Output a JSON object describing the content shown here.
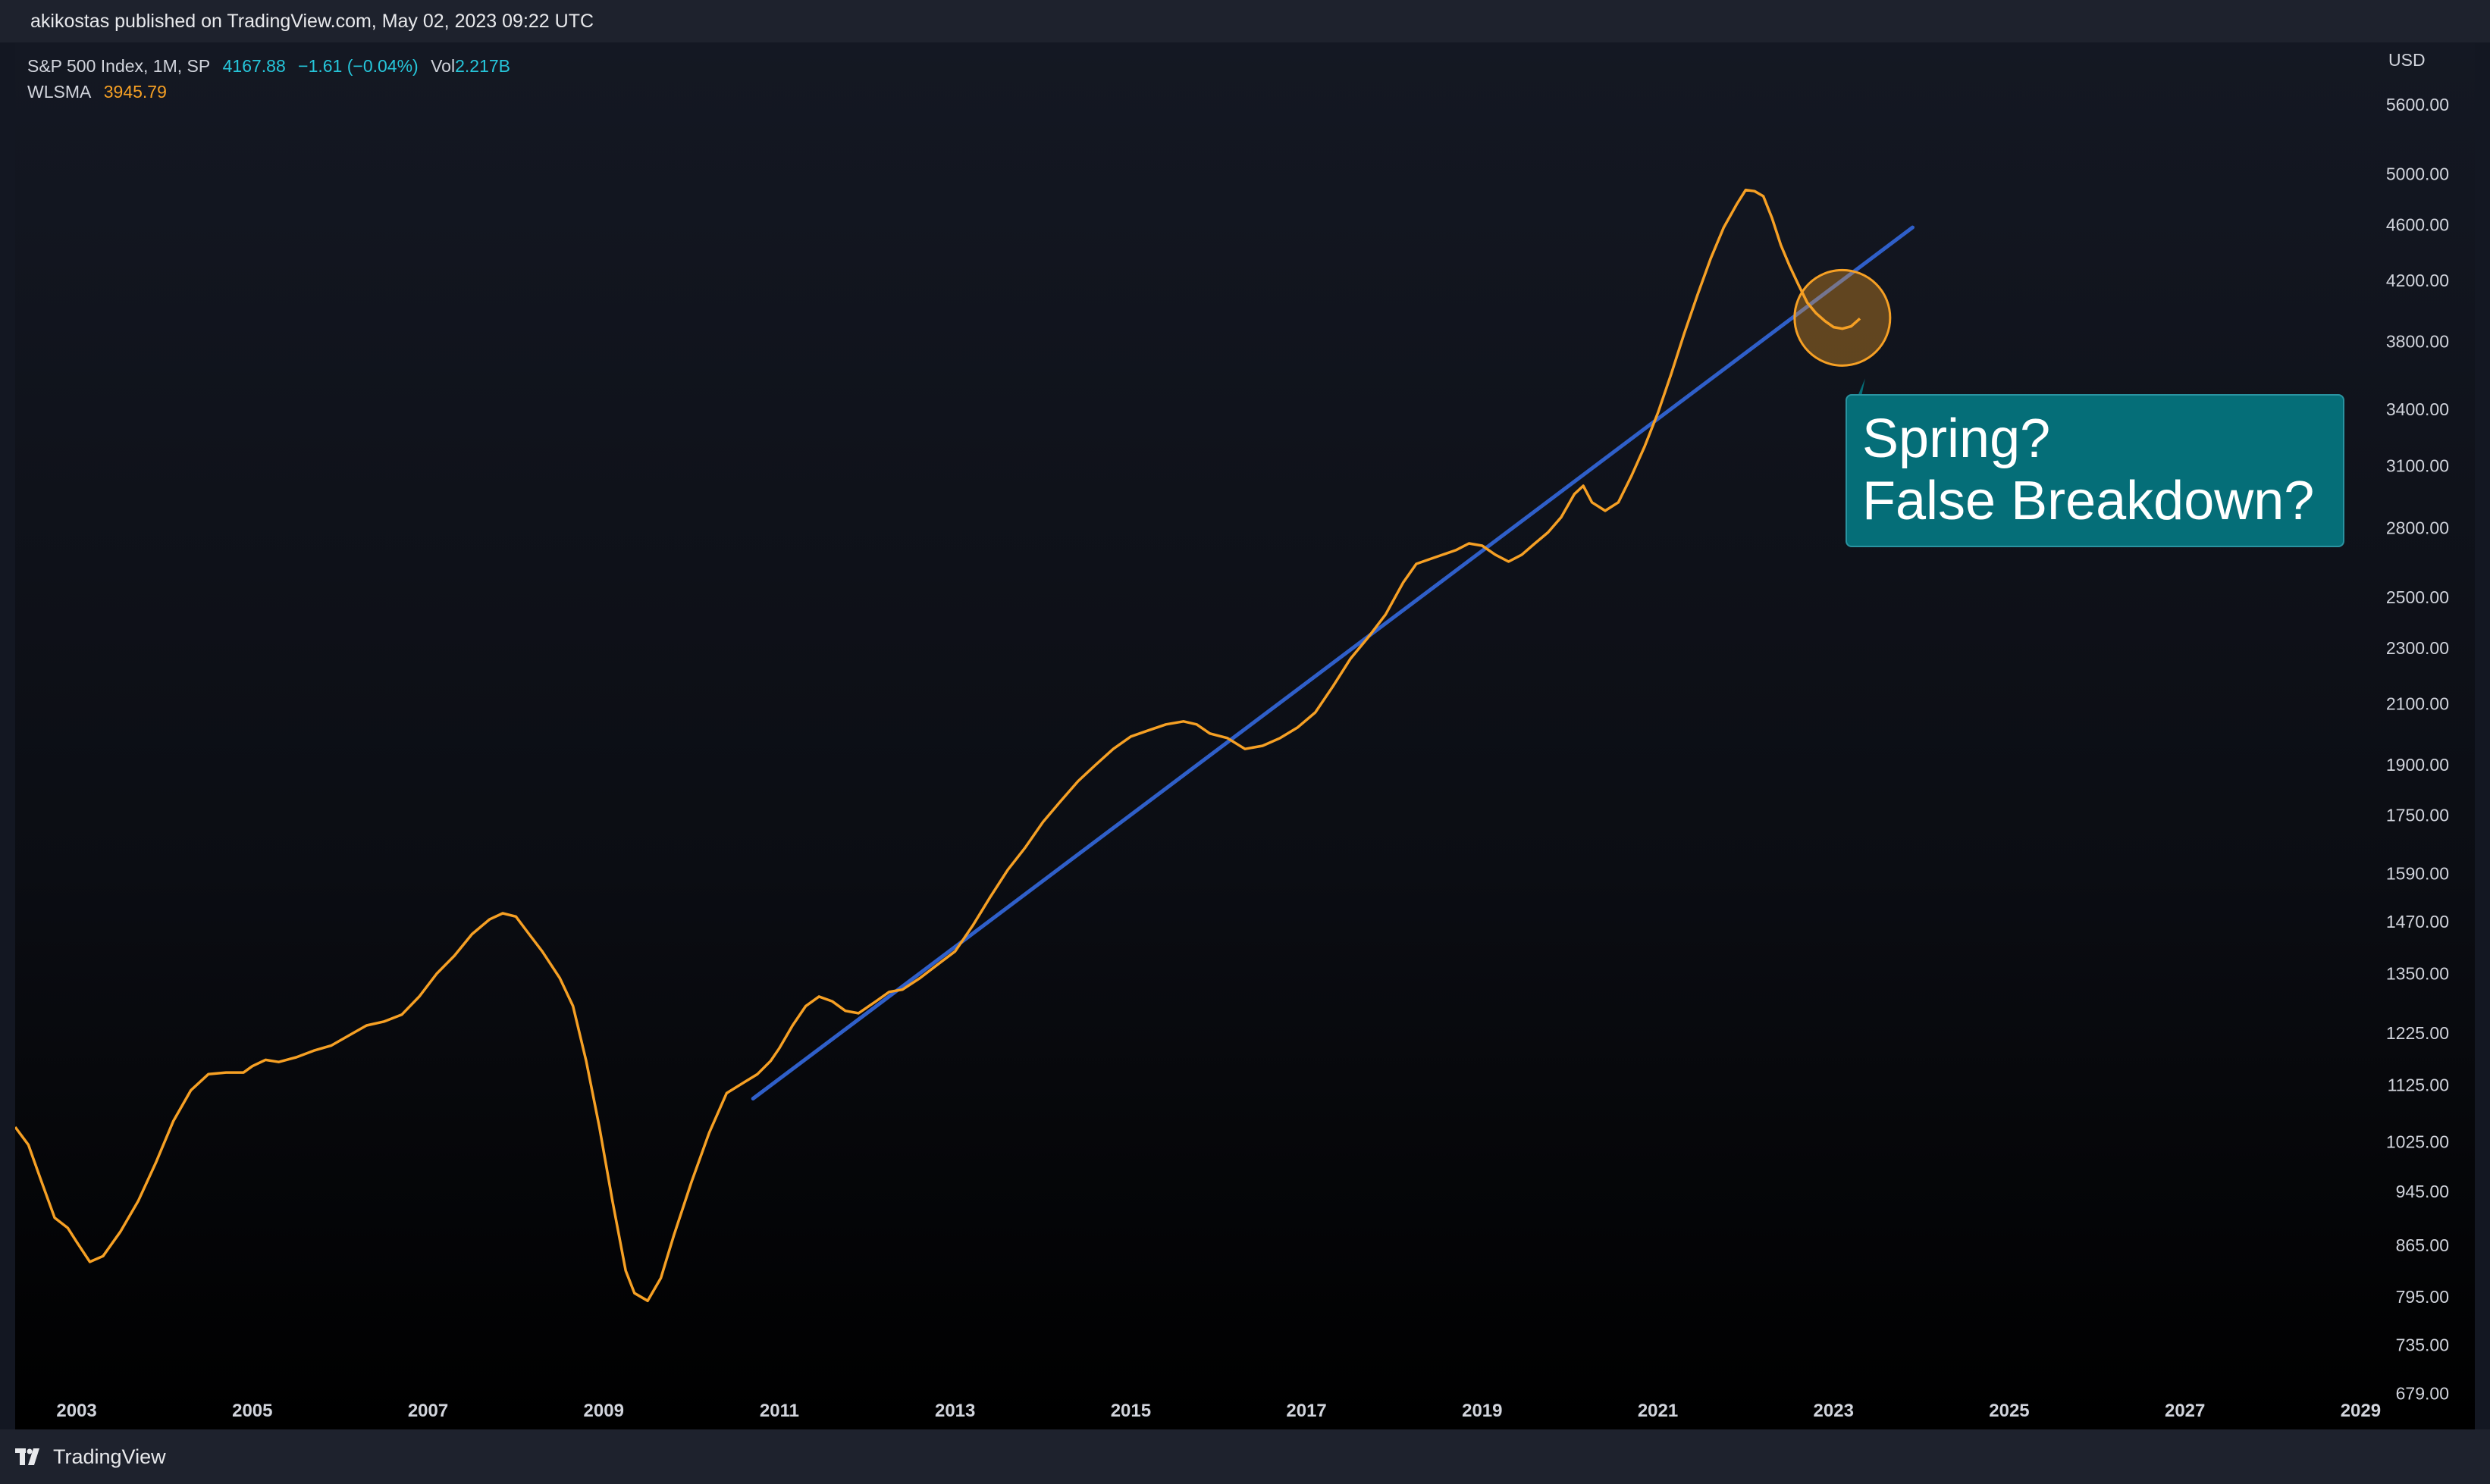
{
  "header": {
    "published_text": "akikostas published on TradingView.com, May 02, 2023 09:22 UTC"
  },
  "legend": {
    "symbol": "S&P 500 Index, 1M, SP",
    "price": "4167.88",
    "change": "−1.61 (−0.04%)",
    "vol_label": "Vol",
    "vol_value": "2.217B",
    "indicator_name": "WLSMA",
    "indicator_value": "3945.79"
  },
  "currency": "USD",
  "annotation": {
    "line1": "Spring?",
    "line2": "False Breakdown?"
  },
  "footer": {
    "brand": "TradingView"
  },
  "colors": {
    "wlsma_line": "#f6a024",
    "trendline": "#2f5fc9",
    "callout_bg": "#056e78",
    "highlight_circle": "#f6a024"
  },
  "chart_data": {
    "type": "line",
    "scale": "log",
    "y_ticks": [
      5600,
      5000,
      4600,
      4200,
      3800,
      3400,
      3100,
      2800,
      2500,
      2300,
      2100,
      1900,
      1750,
      1590,
      1470,
      1350,
      1225,
      1125,
      1025,
      945,
      865,
      795,
      735,
      679
    ],
    "y_tick_labels": [
      "5600.00",
      "5000.00",
      "4600.00",
      "4200.00",
      "3800.00",
      "3400.00",
      "3100.00",
      "2800.00",
      "2500.00",
      "2300.00",
      "2100.00",
      "1900.00",
      "1750.00",
      "1590.00",
      "1470.00",
      "1350.00",
      "1225.00",
      "1125.00",
      "1025.00",
      "945.00",
      "865.00",
      "795.00",
      "735.00",
      "679.00"
    ],
    "x_ticks": [
      2003,
      2005,
      2007,
      2009,
      2011,
      2013,
      2015,
      2017,
      2019,
      2021,
      2023,
      2025,
      2027,
      2029
    ],
    "x_tick_labels": [
      "2003",
      "2005",
      "2007",
      "2009",
      "2011",
      "2013",
      "2015",
      "2017",
      "2019",
      "2021",
      "2023",
      "2025",
      "2027",
      "2029"
    ],
    "xlim": [
      2002.3,
      2030.3
    ],
    "ylim": [
      640,
      6200
    ],
    "series": [
      {
        "name": "WLSMA",
        "points": [
          [
            2002.3,
            1050
          ],
          [
            2002.45,
            1020
          ],
          [
            2002.6,
            960
          ],
          [
            2002.75,
            905
          ],
          [
            2002.9,
            890
          ],
          [
            2003.0,
            870
          ],
          [
            2003.15,
            842
          ],
          [
            2003.3,
            850
          ],
          [
            2003.5,
            885
          ],
          [
            2003.7,
            930
          ],
          [
            2003.9,
            990
          ],
          [
            2004.1,
            1060
          ],
          [
            2004.3,
            1115
          ],
          [
            2004.5,
            1145
          ],
          [
            2004.7,
            1148
          ],
          [
            2004.9,
            1148
          ],
          [
            2005.0,
            1160
          ],
          [
            2005.15,
            1172
          ],
          [
            2005.3,
            1168
          ],
          [
            2005.5,
            1177
          ],
          [
            2005.7,
            1190
          ],
          [
            2005.9,
            1200
          ],
          [
            2006.1,
            1220
          ],
          [
            2006.3,
            1240
          ],
          [
            2006.5,
            1248
          ],
          [
            2006.7,
            1262
          ],
          [
            2006.9,
            1300
          ],
          [
            2007.1,
            1350
          ],
          [
            2007.3,
            1390
          ],
          [
            2007.5,
            1440
          ],
          [
            2007.7,
            1475
          ],
          [
            2007.85,
            1490
          ],
          [
            2008.0,
            1482
          ],
          [
            2008.15,
            1440
          ],
          [
            2008.3,
            1400
          ],
          [
            2008.5,
            1340
          ],
          [
            2008.65,
            1280
          ],
          [
            2008.8,
            1170
          ],
          [
            2008.95,
            1050
          ],
          [
            2009.1,
            930
          ],
          [
            2009.25,
            830
          ],
          [
            2009.35,
            800
          ],
          [
            2009.5,
            790
          ],
          [
            2009.65,
            820
          ],
          [
            2009.8,
            880
          ],
          [
            2010.0,
            960
          ],
          [
            2010.2,
            1040
          ],
          [
            2010.4,
            1110
          ],
          [
            2010.6,
            1130
          ],
          [
            2010.75,
            1145
          ],
          [
            2010.9,
            1170
          ],
          [
            2011.0,
            1195
          ],
          [
            2011.15,
            1240
          ],
          [
            2011.3,
            1280
          ],
          [
            2011.45,
            1300
          ],
          [
            2011.6,
            1290
          ],
          [
            2011.75,
            1270
          ],
          [
            2011.9,
            1265
          ],
          [
            2012.1,
            1290
          ],
          [
            2012.25,
            1310
          ],
          [
            2012.4,
            1315
          ],
          [
            2012.6,
            1340
          ],
          [
            2012.8,
            1370
          ],
          [
            2013.0,
            1400
          ],
          [
            2013.2,
            1460
          ],
          [
            2013.4,
            1530
          ],
          [
            2013.6,
            1600
          ],
          [
            2013.8,
            1660
          ],
          [
            2014.0,
            1730
          ],
          [
            2014.2,
            1790
          ],
          [
            2014.4,
            1850
          ],
          [
            2014.6,
            1900
          ],
          [
            2014.8,
            1950
          ],
          [
            2015.0,
            1990
          ],
          [
            2015.2,
            2010
          ],
          [
            2015.4,
            2030
          ],
          [
            2015.6,
            2040
          ],
          [
            2015.75,
            2030
          ],
          [
            2015.9,
            2000
          ],
          [
            2016.1,
            1985
          ],
          [
            2016.3,
            1950
          ],
          [
            2016.5,
            1960
          ],
          [
            2016.7,
            1985
          ],
          [
            2016.9,
            2020
          ],
          [
            2017.1,
            2070
          ],
          [
            2017.3,
            2160
          ],
          [
            2017.5,
            2260
          ],
          [
            2017.7,
            2340
          ],
          [
            2017.9,
            2430
          ],
          [
            2018.1,
            2560
          ],
          [
            2018.25,
            2640
          ],
          [
            2018.4,
            2660
          ],
          [
            2018.55,
            2680
          ],
          [
            2018.7,
            2700
          ],
          [
            2018.85,
            2730
          ],
          [
            2019.0,
            2720
          ],
          [
            2019.15,
            2680
          ],
          [
            2019.3,
            2650
          ],
          [
            2019.45,
            2680
          ],
          [
            2019.6,
            2730
          ],
          [
            2019.75,
            2780
          ],
          [
            2019.9,
            2850
          ],
          [
            2020.05,
            2960
          ],
          [
            2020.15,
            3000
          ],
          [
            2020.25,
            2920
          ],
          [
            2020.4,
            2880
          ],
          [
            2020.55,
            2920
          ],
          [
            2020.7,
            3050
          ],
          [
            2020.85,
            3200
          ],
          [
            2021.0,
            3380
          ],
          [
            2021.15,
            3600
          ],
          [
            2021.3,
            3850
          ],
          [
            2021.45,
            4100
          ],
          [
            2021.6,
            4350
          ],
          [
            2021.75,
            4580
          ],
          [
            2021.9,
            4760
          ],
          [
            2022.0,
            4870
          ],
          [
            2022.1,
            4860
          ],
          [
            2022.2,
            4820
          ],
          [
            2022.3,
            4650
          ],
          [
            2022.4,
            4450
          ],
          [
            2022.5,
            4300
          ],
          [
            2022.6,
            4170
          ],
          [
            2022.7,
            4050
          ],
          [
            2022.8,
            3980
          ],
          [
            2022.9,
            3930
          ],
          [
            2023.0,
            3890
          ],
          [
            2023.1,
            3880
          ],
          [
            2023.2,
            3895
          ],
          [
            2023.3,
            3945
          ]
        ]
      },
      {
        "name": "Trendline",
        "points": [
          [
            2010.7,
            1100
          ],
          [
            2023.9,
            4580
          ]
        ]
      }
    ],
    "highlight": {
      "center": [
        2023.1,
        3950
      ],
      "label": ""
    },
    "grid": false
  }
}
